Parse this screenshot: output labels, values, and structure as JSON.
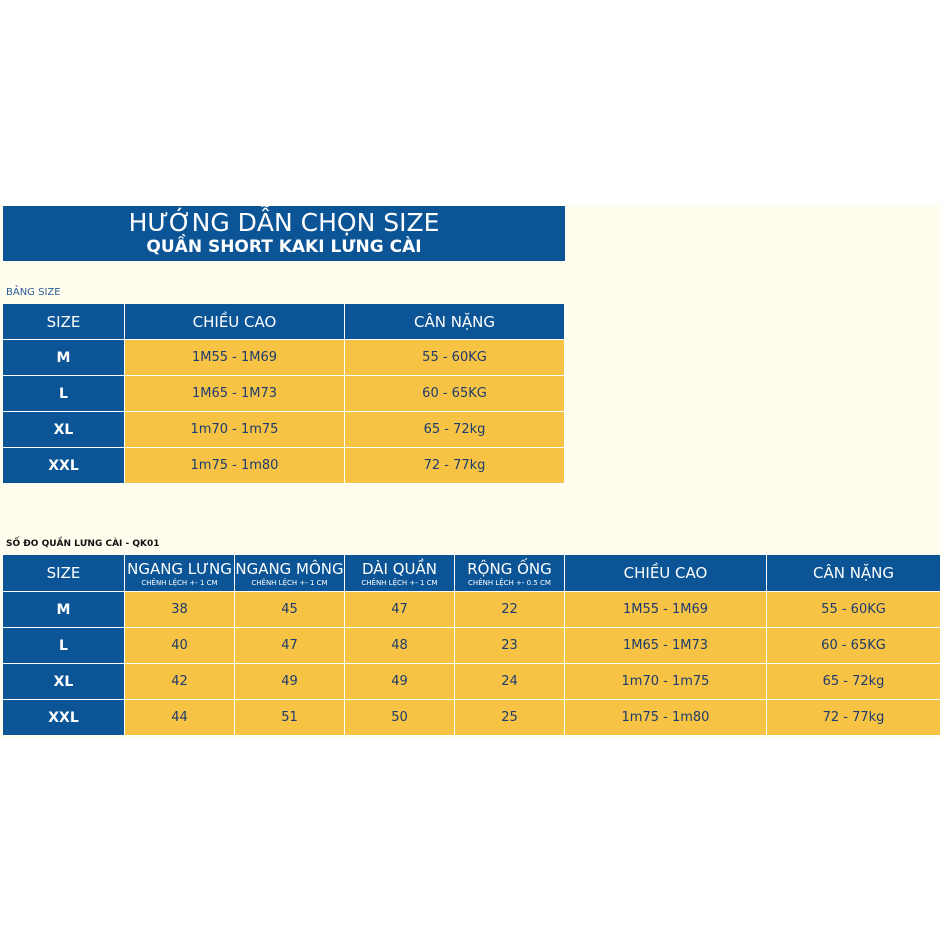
{
  "header": {
    "title": "HƯỚNG DẪN CHỌN SIZE",
    "subtitle": "QUẦN SHORT KAKI LƯNG CÀI"
  },
  "size_table": {
    "label": "BẢNG SIZE",
    "columns": [
      "SIZE",
      "CHIỀU CAO",
      "CÂN NẶNG"
    ],
    "rows": [
      [
        "M",
        "1M55 - 1M69",
        "55 - 60KG"
      ],
      [
        "L",
        "1M65 - 1M73",
        "60 - 65KG"
      ],
      [
        "XL",
        "1m70 - 1m75",
        "65 - 72kg"
      ],
      [
        "XXL",
        "1m75 - 1m80",
        "72 - 77kg"
      ]
    ]
  },
  "measure_table": {
    "label": "SỐ ĐO QUẦN LƯNG CÀI - QK01",
    "columns": [
      {
        "label": "SIZE"
      },
      {
        "label": "NGANG LƯNG",
        "note": "CHÊNH LỆCH +- 1 CM"
      },
      {
        "label": "NGANG MÔNG",
        "note": "CHÊNH LỆCH +- 1 CM"
      },
      {
        "label": "DÀI QUẦN",
        "note": "CHÊNH LỆCH +- 1 CM"
      },
      {
        "label": "RỘNG ỐNG",
        "note": "CHÊNH LỆCH +- 0.5 CM"
      },
      {
        "label": "CHIỀU CAO"
      },
      {
        "label": "CÂN NẶNG"
      }
    ],
    "rows": [
      [
        "M",
        38,
        45,
        47,
        22,
        "1M55 - 1M69",
        "55 - 60KG"
      ],
      [
        "L",
        40,
        47,
        48,
        23,
        "1M65 - 1M73",
        "60 - 65KG"
      ],
      [
        "XL",
        42,
        49,
        49,
        24,
        "1m70 - 1m75",
        "65 - 72kg"
      ],
      [
        "XXL",
        44,
        51,
        50,
        25,
        "1m75 - 1m80",
        "72 - 77kg"
      ]
    ]
  }
}
